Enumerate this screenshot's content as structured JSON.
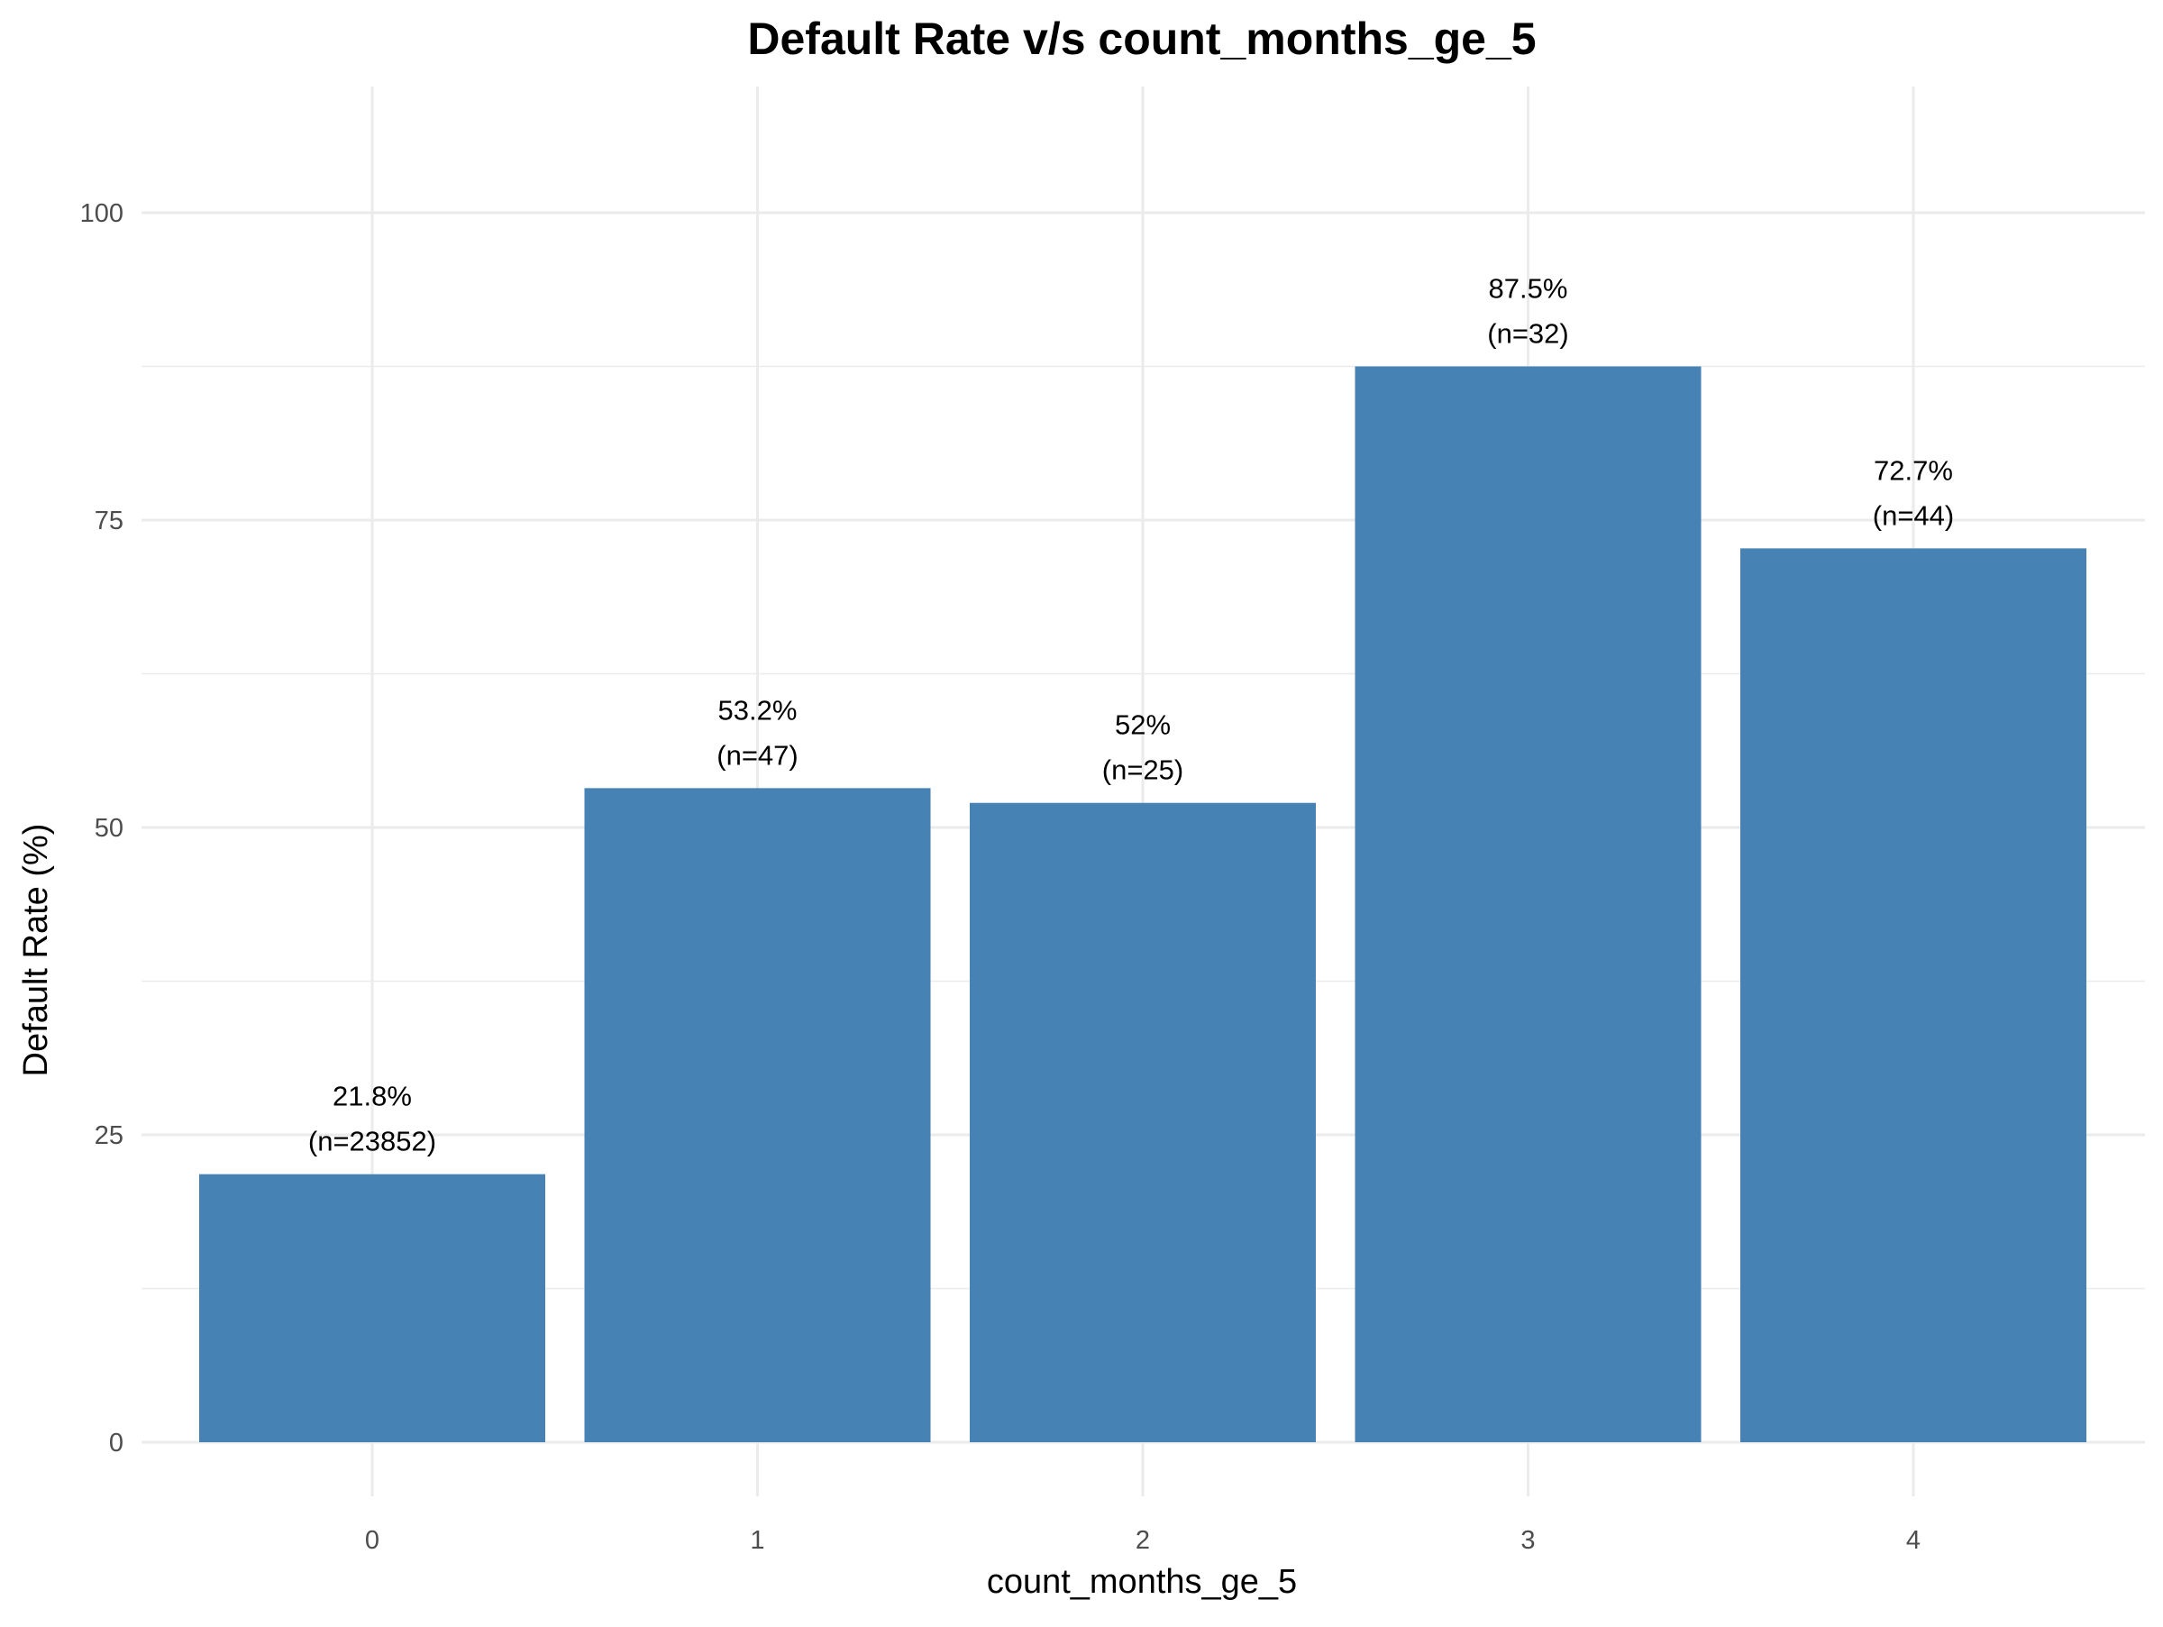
{
  "chart_data": {
    "type": "bar",
    "title": "Default Rate v/s count_months_ge_5",
    "xlabel": "count_months_ge_5",
    "ylabel": "Default Rate (%)",
    "categories": [
      "0",
      "1",
      "2",
      "3",
      "4"
    ],
    "values": [
      21.8,
      53.2,
      52,
      87.5,
      72.7
    ],
    "value_labels": [
      "21.8%",
      "53.2%",
      "52%",
      "87.5%",
      "72.7%"
    ],
    "count_labels": [
      "(n=23852)",
      "(n=47)",
      "(n=25)",
      "(n=32)",
      "(n=44)"
    ],
    "ylim": [
      0,
      110
    ],
    "yticks": [
      0,
      25,
      50,
      75,
      100
    ],
    "ytick_labels": [
      "0",
      "25",
      "50",
      "75",
      "100"
    ],
    "grid": true,
    "legend": "none",
    "colors": {
      "bar": "#4682B4",
      "grid": "#EBEBEB",
      "background": "#FFFFFF"
    }
  }
}
